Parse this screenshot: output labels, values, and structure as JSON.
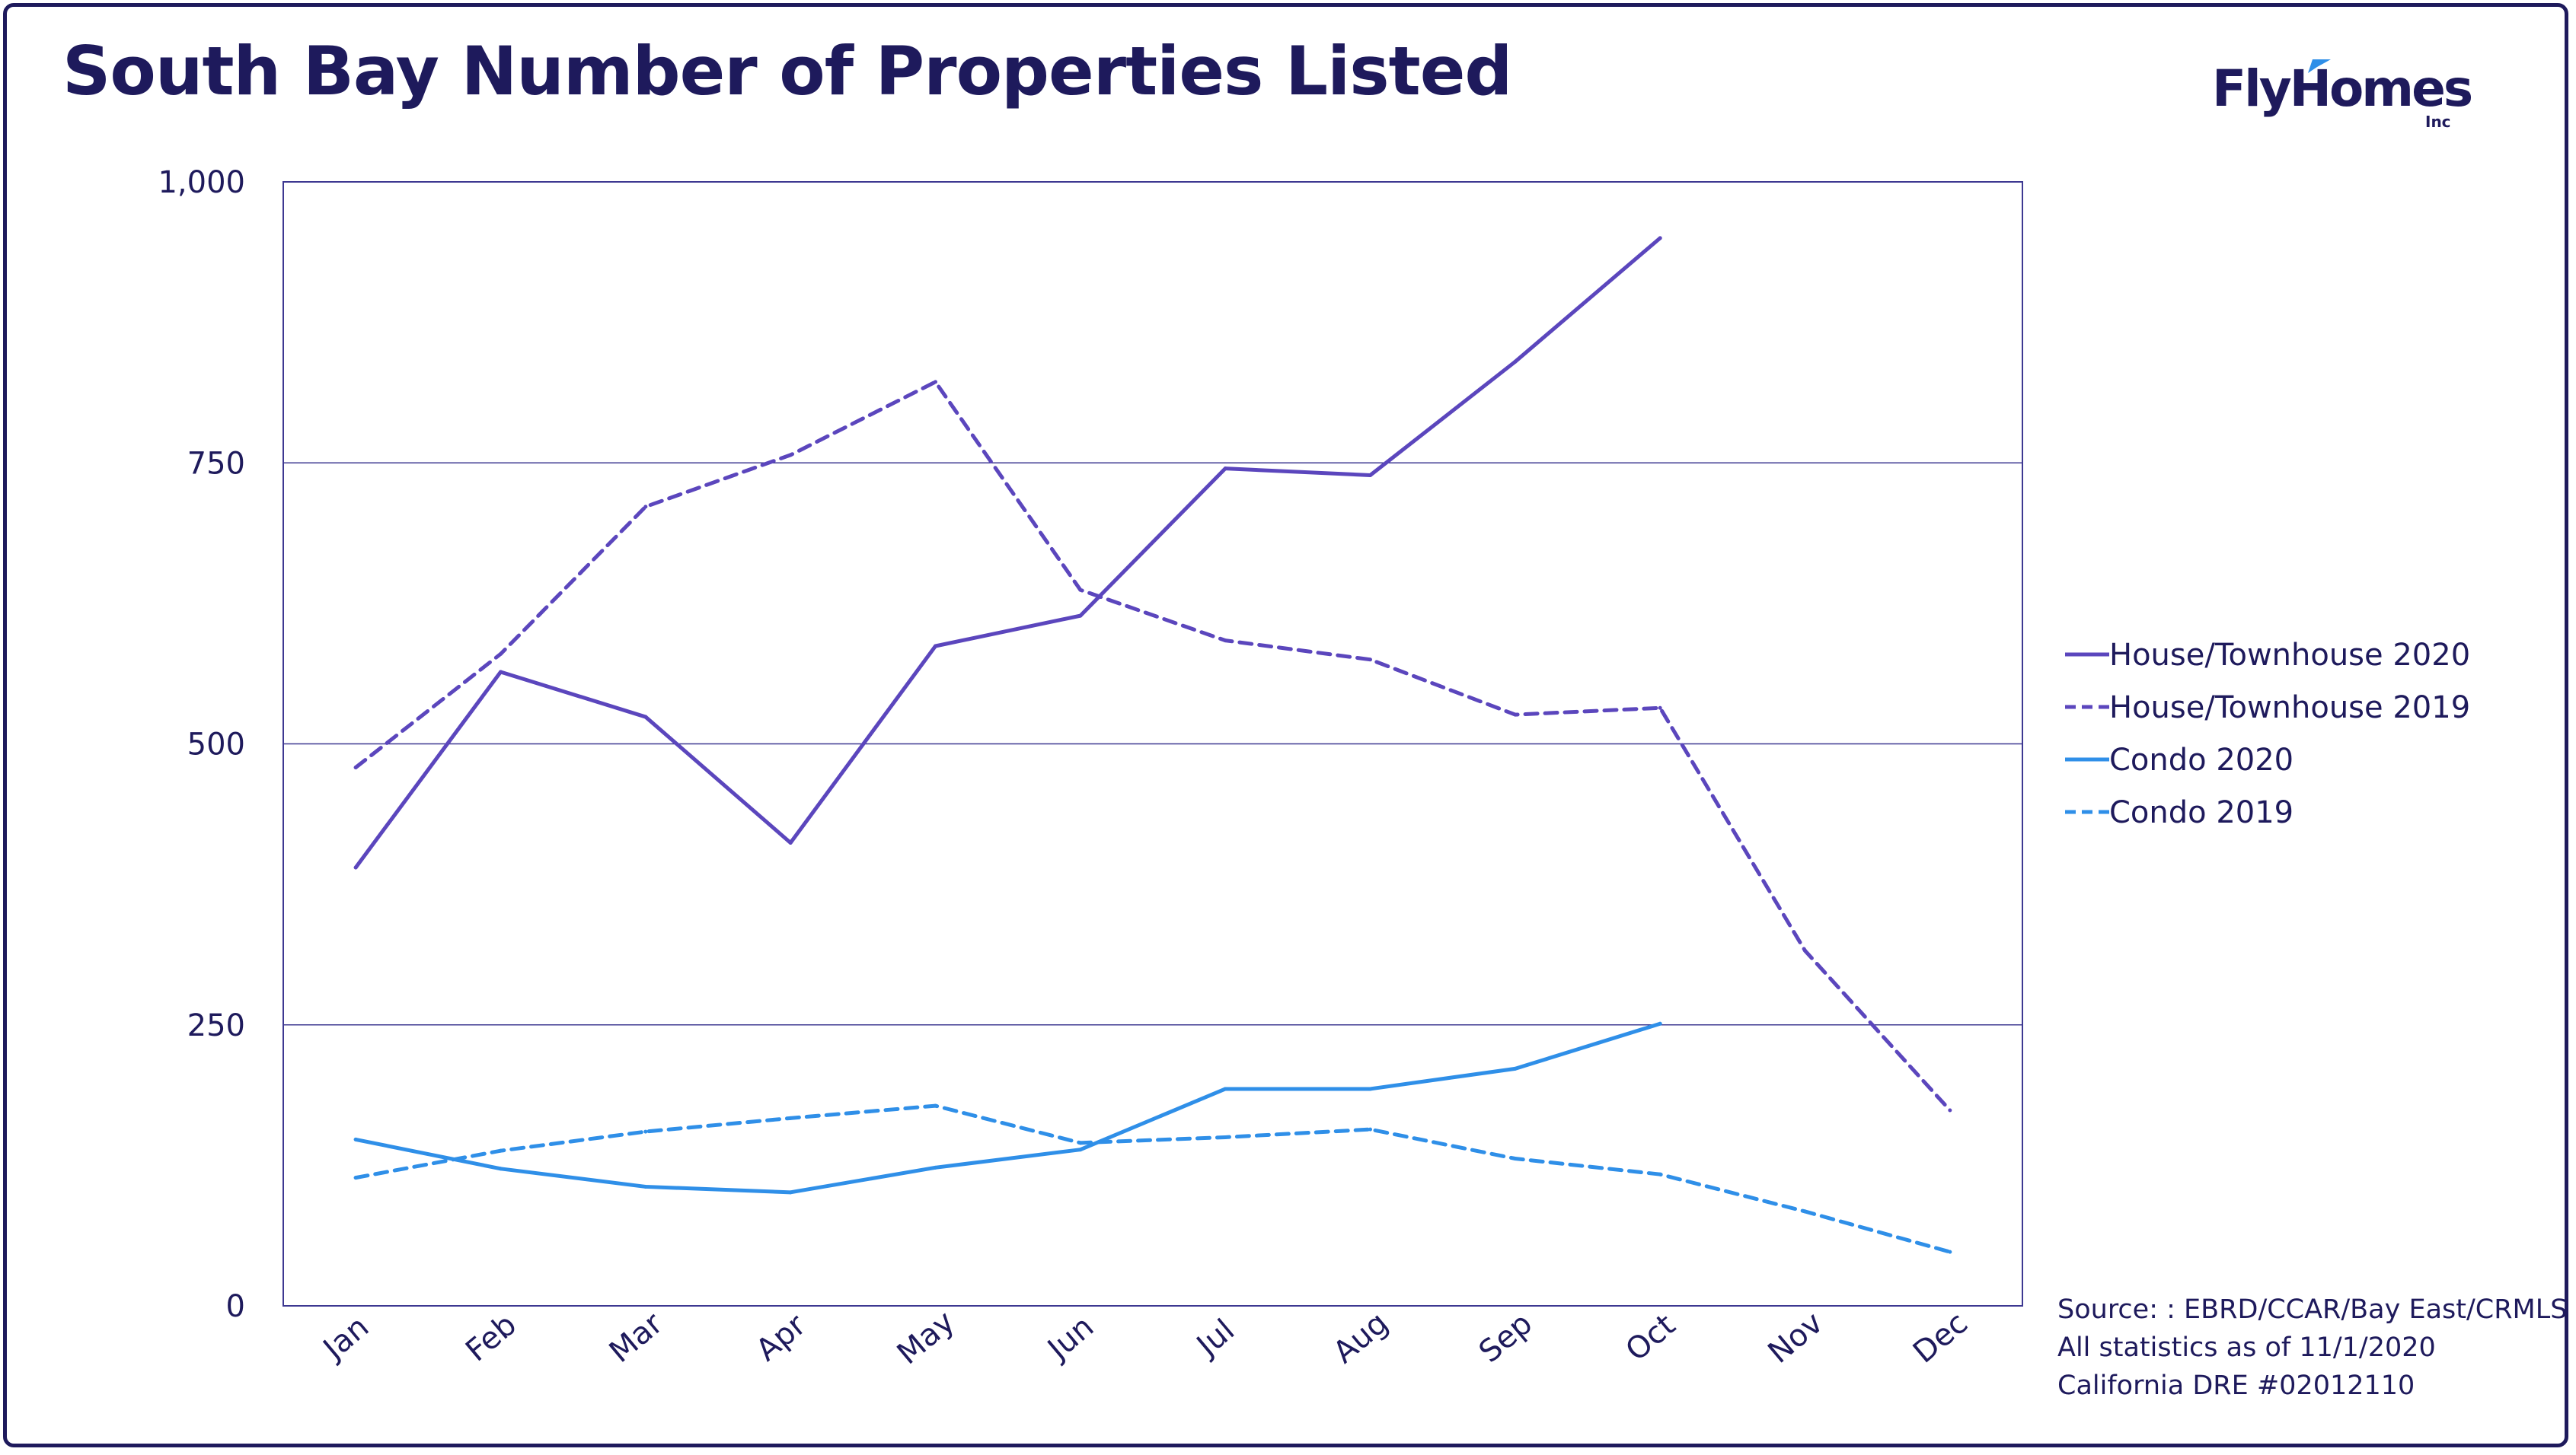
{
  "title": "South Bay Number of Properties Listed",
  "logo": {
    "text": "FlyHomes",
    "suffix": "Inc",
    "accent": "#2f8fe8"
  },
  "source_lines": [
    "Source: : EBRD/CCAR/Bay East/CRMLS",
    "All statistics as of 11/1/2020",
    "California DRE #02012110"
  ],
  "chart_data": {
    "type": "line",
    "title": "South Bay Number of Properties Listed",
    "xlabel": "",
    "ylabel": "",
    "categories": [
      "Jan",
      "Feb",
      "Mar",
      "Apr",
      "May",
      "Jun",
      "Jul",
      "Aug",
      "Sep",
      "Oct",
      "Nov",
      "Dec"
    ],
    "ylim": [
      0,
      1000
    ],
    "yticks": [
      0,
      250,
      500,
      750,
      1000
    ],
    "ytick_labels": [
      "0",
      "250",
      "500",
      "750",
      "1,000"
    ],
    "grid": true,
    "legend_position": "right",
    "series": [
      {
        "name": "House/Townhouse 2020",
        "color": "#5b46bd",
        "dashed": false,
        "values": [
          390,
          564,
          524,
          412,
          587,
          614,
          745,
          739,
          840,
          950,
          null,
          null
        ]
      },
      {
        "name": "House/Townhouse 2019",
        "color": "#5b46bd",
        "dashed": true,
        "values": [
          479,
          580,
          711,
          757,
          822,
          637,
          592,
          575,
          526,
          532,
          316,
          174
        ]
      },
      {
        "name": "Condo 2020",
        "color": "#2f8fe8",
        "dashed": false,
        "values": [
          148,
          122,
          106,
          101,
          123,
          139,
          193,
          193,
          211,
          251,
          null,
          null
        ]
      },
      {
        "name": "Condo 2019",
        "color": "#2f8fe8",
        "dashed": true,
        "values": [
          114,
          138,
          155,
          167,
          178,
          145,
          150,
          157,
          131,
          117,
          84,
          48
        ]
      }
    ]
  }
}
